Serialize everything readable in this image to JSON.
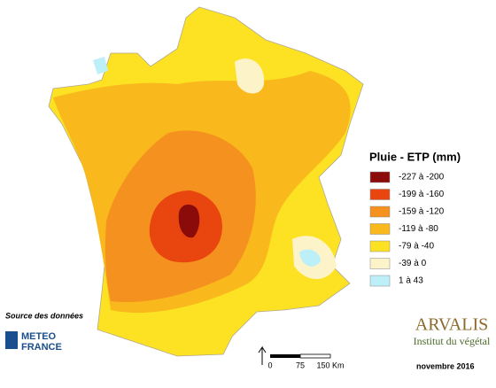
{
  "legend": {
    "title": "Pluie - ETP (mm)",
    "items": [
      {
        "label": "-227 à -200",
        "color": "#8b0a0a"
      },
      {
        "label": "-199 à -160",
        "color": "#e9460f"
      },
      {
        "label": "-159 à -120",
        "color": "#f5911f"
      },
      {
        "label": "-119 à -80",
        "color": "#f9b91c"
      },
      {
        "label": "-79 à -40",
        "color": "#fde223"
      },
      {
        "label": "-39 à 0",
        "color": "#fcf4c8"
      },
      {
        "label": "1 à 43",
        "color": "#bdeff9"
      }
    ]
  },
  "source": "Source des données",
  "meteo": [
    "METEO",
    "FRANCE"
  ],
  "arvalis": {
    "name": "ARVALIS",
    "sub": "Institut du végétal"
  },
  "scale": [
    "0",
    "75",
    "150 Km"
  ],
  "date": "novembre 2016"
}
